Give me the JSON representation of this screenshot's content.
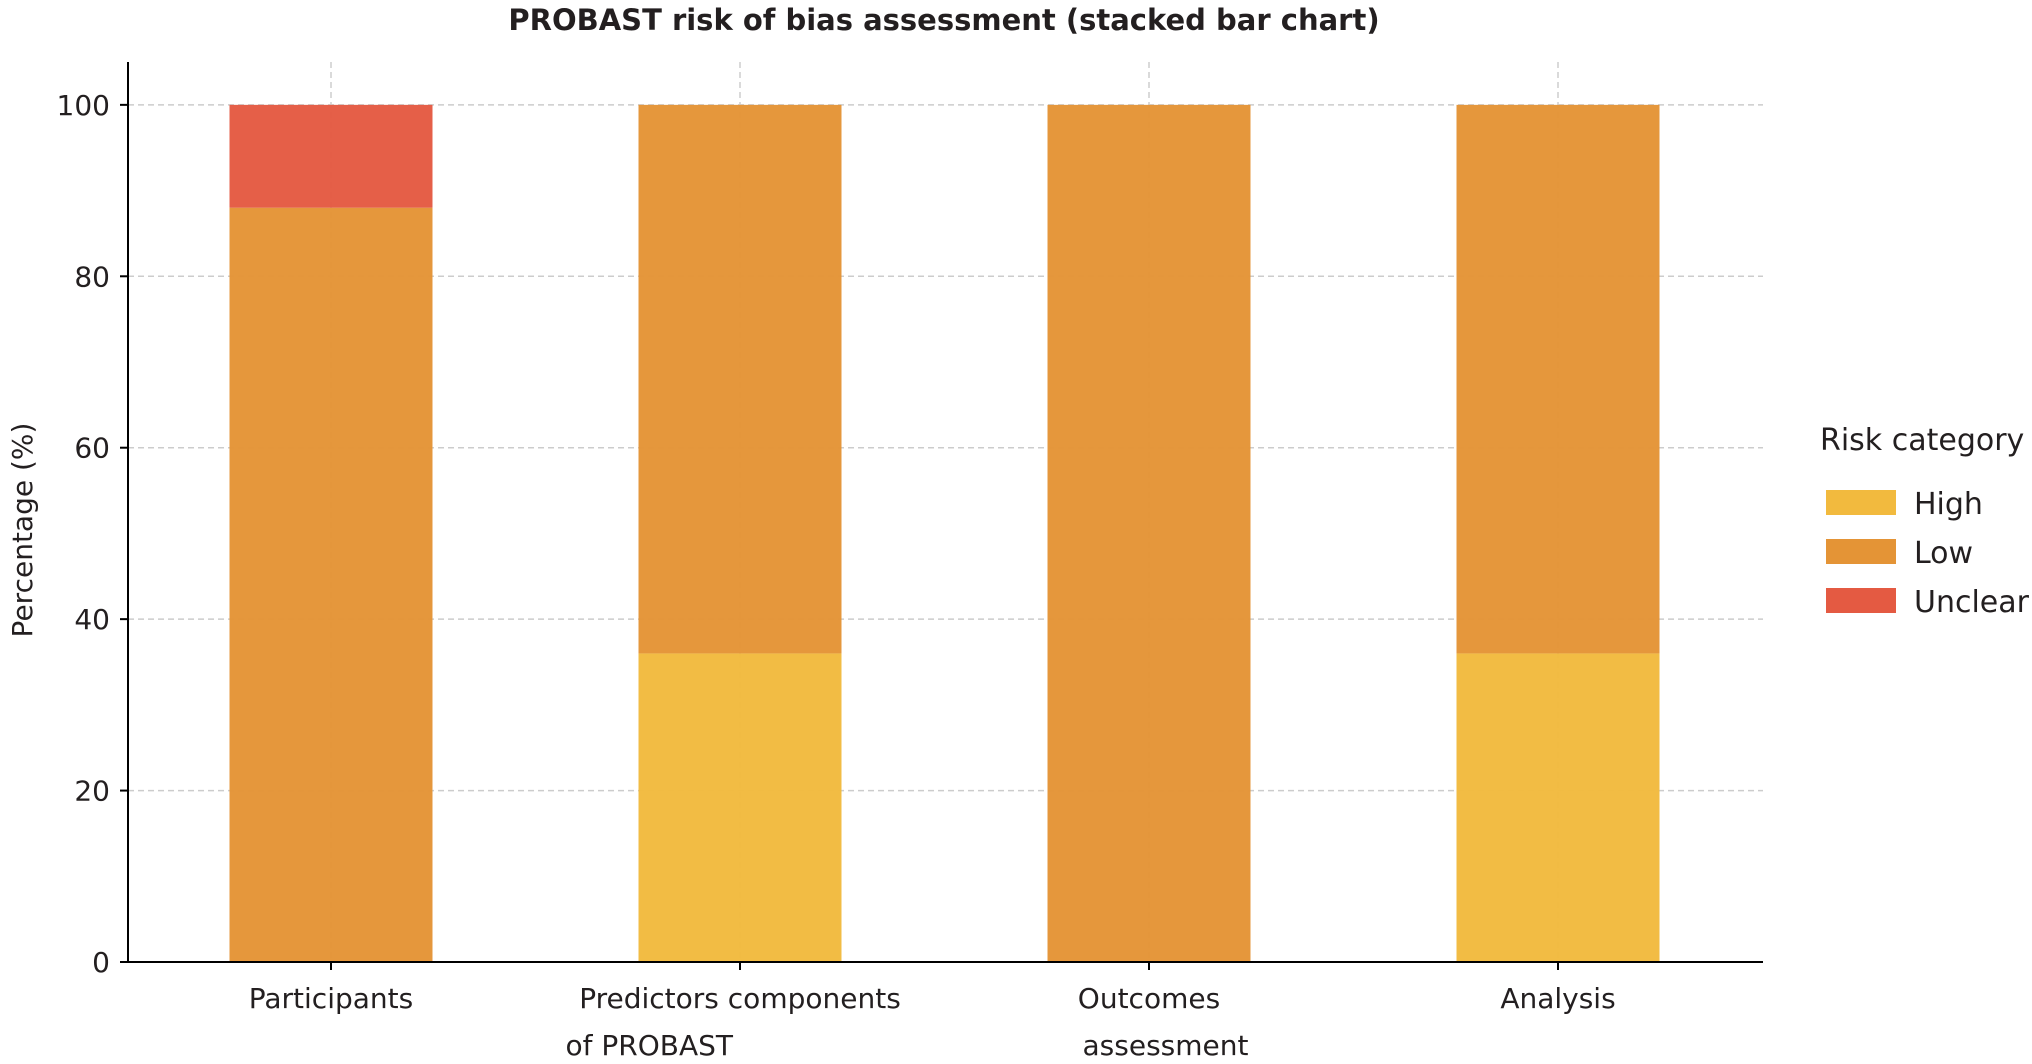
{
  "chart_data": {
    "type": "bar",
    "stacked": true,
    "title": "PROBAST risk of bias assessment (stacked bar chart)",
    "xlabel": "",
    "ylabel": "Percentage (%)",
    "ylim": [
      0,
      105
    ],
    "yticks": [
      0,
      20,
      40,
      60,
      80,
      100
    ],
    "grid": true,
    "categories": [
      [
        "Participants"
      ],
      [
        "Predictors components",
        "of PROBAST"
      ],
      [
        "Outcomes",
        "assessment"
      ],
      [
        "Analysis"
      ]
    ],
    "series": [
      {
        "name": "High",
        "color": "#F2BA3E",
        "values": [
          0,
          36,
          0,
          36
        ]
      },
      {
        "name": "Low",
        "color": "#E49436",
        "values": [
          88,
          64,
          100,
          64
        ]
      },
      {
        "name": "Unclear",
        "color": "#E45A42",
        "values": [
          12,
          0,
          0,
          0
        ]
      }
    ],
    "legend": {
      "title": "Risk category",
      "position": "right"
    }
  }
}
